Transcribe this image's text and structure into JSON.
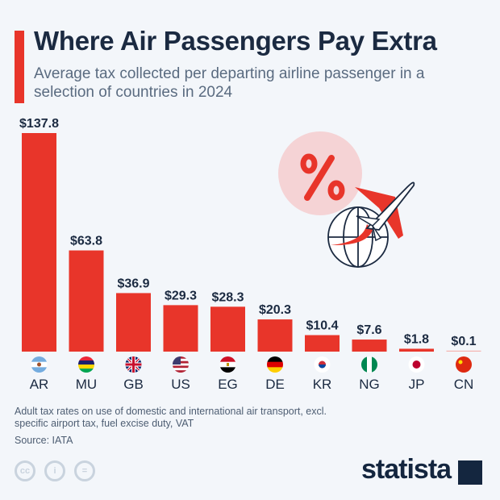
{
  "header": {
    "title": "Where Air Passengers Pay Extra",
    "subtitle": "Average tax collected per departing airline passenger in a selection of countries in 2024"
  },
  "chart_data": {
    "type": "bar",
    "categories": [
      "AR",
      "MU",
      "GB",
      "US",
      "EG",
      "DE",
      "KR",
      "NG",
      "JP",
      "CN"
    ],
    "values": [
      137.8,
      63.8,
      36.9,
      29.3,
      28.3,
      20.3,
      10.4,
      7.6,
      1.8,
      0.1
    ],
    "data_labels": [
      "$137.8",
      "$63.8",
      "$36.9",
      "$29.3",
      "$28.3",
      "$20.3",
      "$10.4",
      "$7.6",
      "$1.8",
      "$0.1"
    ],
    "ylim": [
      0,
      137.8
    ],
    "grid": false,
    "bar_color": "#e8352a",
    "flag_icons": [
      "flag-argentina",
      "flag-mauritius",
      "flag-united-kingdom",
      "flag-united-states",
      "flag-egypt",
      "flag-germany",
      "flag-south-korea",
      "flag-nigeria",
      "flag-japan",
      "flag-china"
    ]
  },
  "footer": {
    "note": "Adult tax rates on use of domestic and international air transport, excl. specific airport tax, fuel excise duty, VAT",
    "source": "Source: IATA",
    "logo": "statista",
    "license_icons": [
      "cc-icon",
      "attribution-icon",
      "no-derivatives-icon"
    ]
  },
  "colors": {
    "accent": "#e8352a",
    "text": "#1b2a41",
    "background": "#f3f6fa",
    "illustration_circle": "#f5d3d5"
  }
}
